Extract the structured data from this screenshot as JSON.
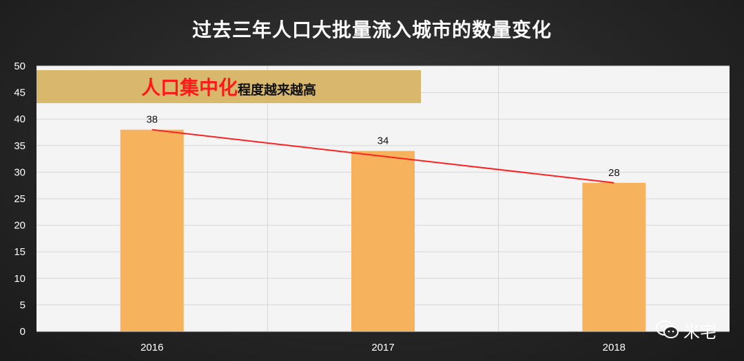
{
  "title": "过去三年人口大批量流入城市的数量变化",
  "banner": {
    "highlight": "人口集中化",
    "rest": "程度越来越高"
  },
  "watermark": {
    "text": "米宅",
    "icon": "wechat-icon"
  },
  "colors": {
    "bar": "#f7b25e",
    "trend": "#ff2020",
    "banner": "#d8b86d",
    "highlight": "#ff1a1a"
  },
  "chart_data": {
    "type": "bar",
    "title": "过去三年人口大批量流入城市的数量变化",
    "categories": [
      "2016",
      "2017",
      "2018"
    ],
    "values": [
      38,
      34,
      28
    ],
    "ylim": [
      0,
      50
    ],
    "yticks": [
      0,
      5,
      10,
      15,
      20,
      25,
      30,
      35,
      40,
      45,
      50
    ],
    "grid": true,
    "trendline": {
      "type": "linear",
      "from": 38,
      "to": 28
    }
  }
}
